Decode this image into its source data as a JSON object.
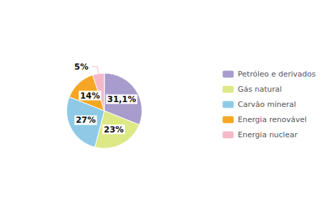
{
  "chart_data": {
    "type": "pie",
    "categories": [
      "Petróleo e derivados",
      "Gás natural",
      "Carvão mineral",
      "Energia renovável",
      "Energia nuclear"
    ],
    "values": [
      31.1,
      23,
      27,
      14,
      5
    ],
    "value_labels": [
      "31,1%",
      "23%",
      "27%",
      "14%",
      "5%"
    ],
    "colors": [
      "#a89ccc",
      "#dde887",
      "#8ecae6",
      "#f5a623",
      "#f4b8c8"
    ],
    "legend": "right",
    "data_labels": true
  }
}
